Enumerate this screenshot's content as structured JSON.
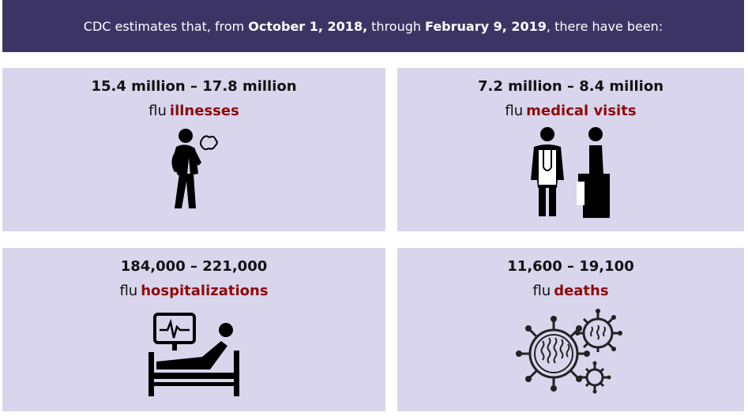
{
  "header": {
    "parts": [
      "CDC estimates that, from",
      "October 1, 2018,",
      "through",
      "February 9, 2019",
      ", there have been:"
    ]
  },
  "cards": [
    {
      "range": "15.4 million – 17.8 million",
      "prefix": "flu",
      "term": "illnesses"
    },
    {
      "range": "7.2 million – 8.4 million",
      "prefix": "flu",
      "term": "medical visits"
    },
    {
      "range": "184,000 – 221,000",
      "prefix": "flu",
      "term": "hospitalizations"
    },
    {
      "range": "11,600 – 19,100",
      "prefix": "flu",
      "term": "deaths"
    }
  ]
}
